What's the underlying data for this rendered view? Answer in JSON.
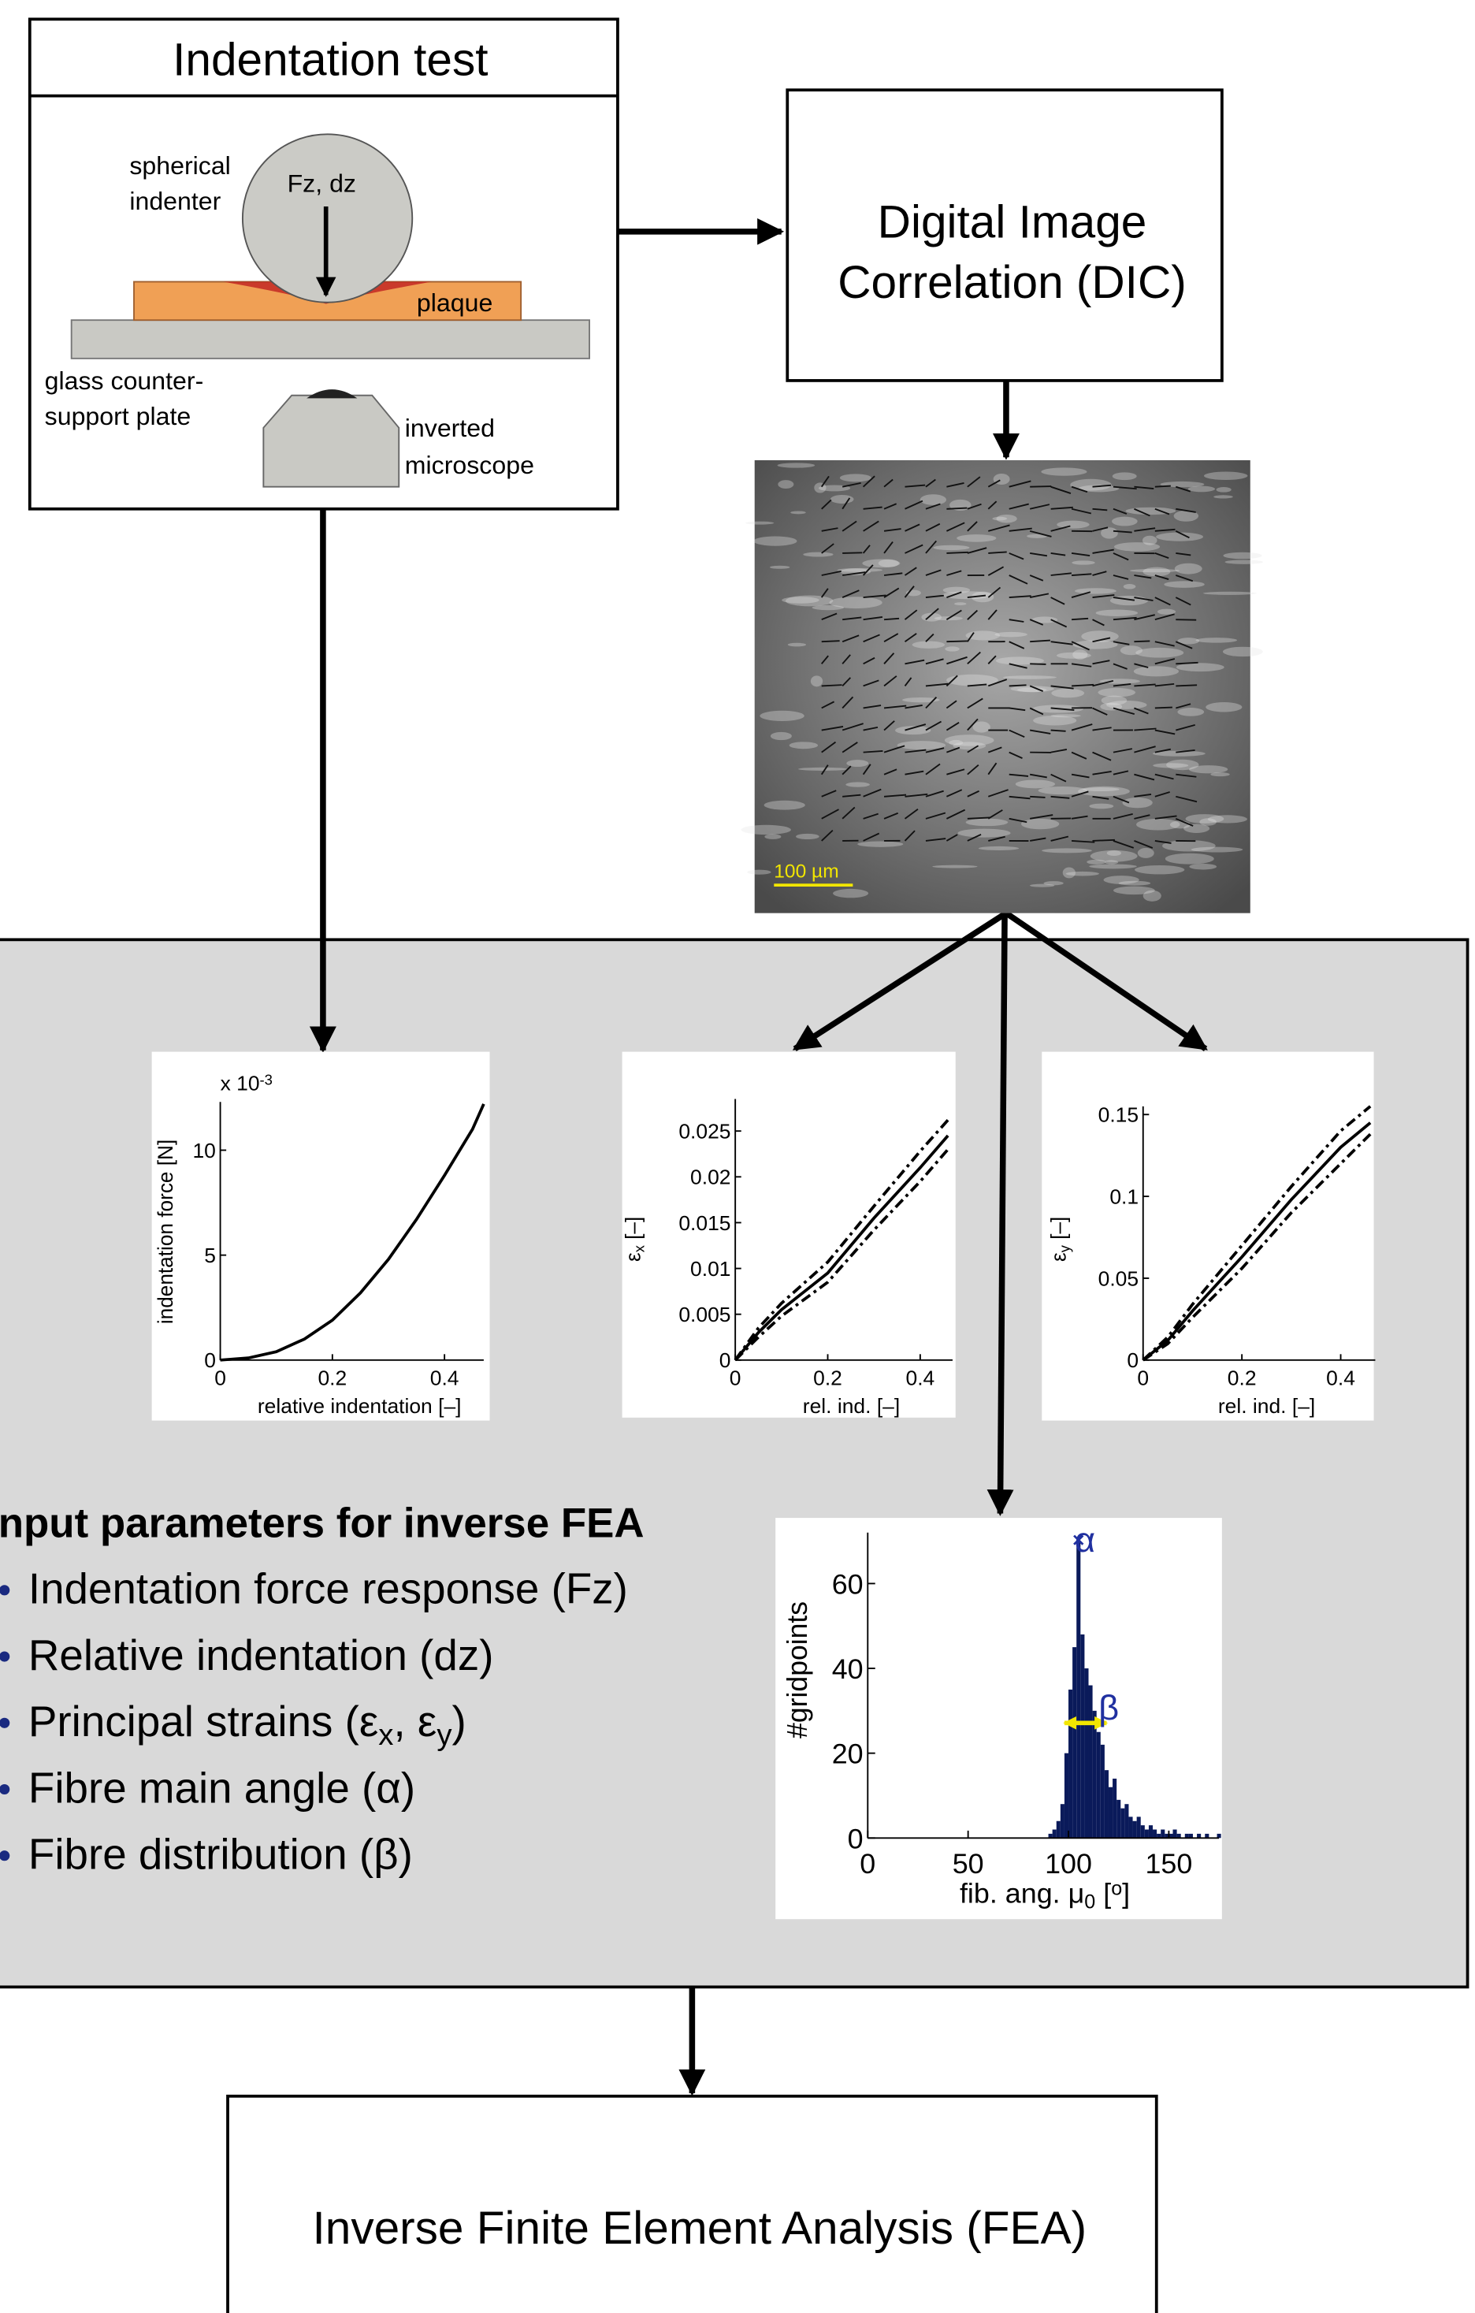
{
  "indentation_test": {
    "title": "Indentation test",
    "indenter_label": [
      "spherical",
      "indenter"
    ],
    "load_label": "Fz, dz",
    "plaque_label": "plaque",
    "plate_label": [
      "glass counter-",
      "support plate"
    ],
    "microscope_label": [
      "inverted",
      "microscope"
    ]
  },
  "dic": {
    "label": [
      "Digital Image",
      "Correlation (DIC)"
    ]
  },
  "micrograph": {
    "scale_bar": "100 µm"
  },
  "plots": [
    {
      "type": "line",
      "multiplier": [
        "x 10",
        "-3"
      ],
      "ylabel": [
        "indentation force [N]"
      ],
      "xlabel": [
        "relative indentation [–]"
      ],
      "xlim": [
        0,
        0.47
      ],
      "ylim": [
        0,
        12.3
      ],
      "xticks": [
        0,
        0.2,
        0.4
      ],
      "yticks": [
        0,
        5,
        10
      ],
      "x": [
        0,
        0.05,
        0.1,
        0.15,
        0.2,
        0.25,
        0.3,
        0.35,
        0.4,
        0.45,
        0.47
      ],
      "series": [
        {
          "color": "#000000",
          "style": "solid",
          "values": [
            0,
            0.1,
            0.4,
            1,
            1.9,
            3.2,
            4.8,
            6.7,
            8.8,
            11,
            12.2
          ]
        }
      ]
    },
    {
      "type": "line",
      "ylabel": [
        "ε",
        "x",
        " [–]"
      ],
      "xlabel": [
        "rel. ind. [–]"
      ],
      "xlim": [
        0,
        0.47
      ],
      "ylim": [
        0,
        0.0285
      ],
      "xticks": [
        0,
        0.2,
        0.4
      ],
      "yticks": [
        0,
        0.005,
        0.01,
        0.015,
        0.02,
        0.025
      ],
      "x": [
        0,
        0.05,
        0.1,
        0.2,
        0.3,
        0.4,
        0.46
      ],
      "series": [
        {
          "color": "#000000",
          "style": "solid",
          "values": [
            0,
            0.003,
            0.0055,
            0.0095,
            0.0155,
            0.021,
            0.0245
          ]
        },
        {
          "color": "#000000",
          "style": "dashdot",
          "values": [
            0,
            0.0035,
            0.0062,
            0.0107,
            0.0168,
            0.0228,
            0.0262
          ]
        },
        {
          "color": "#000000",
          "style": "dashdot",
          "values": [
            0,
            0.0025,
            0.0048,
            0.0085,
            0.0142,
            0.0195,
            0.023
          ]
        }
      ]
    },
    {
      "type": "line",
      "ylabel": [
        "ε",
        "y",
        " [–]"
      ],
      "xlabel": [
        "rel. ind. [–]"
      ],
      "xlim": [
        0,
        0.47
      ],
      "ylim": [
        0,
        0.155
      ],
      "xticks": [
        0,
        0.2,
        0.4
      ],
      "yticks": [
        0,
        0.05,
        0.1,
        0.15
      ],
      "x": [
        0,
        0.05,
        0.1,
        0.2,
        0.3,
        0.4,
        0.46
      ],
      "series": [
        {
          "color": "#000000",
          "style": "solid",
          "values": [
            0,
            0.012,
            0.03,
            0.063,
            0.098,
            0.13,
            0.145
          ]
        },
        {
          "color": "#000000",
          "style": "dashdot",
          "values": [
            0,
            0.014,
            0.034,
            0.07,
            0.106,
            0.14,
            0.155
          ]
        },
        {
          "color": "#000000",
          "style": "dashdot",
          "values": [
            0,
            0.01,
            0.026,
            0.056,
            0.09,
            0.12,
            0.138
          ]
        }
      ]
    }
  ],
  "histogram": {
    "type": "histogram",
    "ylabel": "#gridpoints",
    "xlabel": [
      "fib. ang. μ",
      "0",
      " [",
      "o",
      "]"
    ],
    "xlim": [
      0,
      175
    ],
    "ylim": [
      0,
      72
    ],
    "xticks": [
      0,
      50,
      100,
      150
    ],
    "yticks": [
      0,
      20,
      40,
      60
    ],
    "color": "#0a1a5a",
    "bins": [
      90,
      92,
      94,
      96,
      98,
      100,
      102,
      104,
      106,
      108,
      110,
      112,
      114,
      116,
      118,
      120,
      122,
      124,
      126,
      128,
      130,
      132,
      134,
      136,
      138,
      140,
      142,
      144,
      146,
      148,
      150,
      152,
      154,
      156,
      158,
      160,
      162,
      164,
      166,
      168,
      170,
      172,
      174,
      176
    ],
    "counts": [
      1,
      2,
      4,
      8,
      20,
      35,
      45,
      70,
      48,
      40,
      36,
      30,
      25,
      22,
      16,
      12,
      14,
      9,
      7,
      8,
      5,
      4,
      5,
      3,
      2,
      3,
      2,
      1,
      2,
      1,
      1,
      2,
      1,
      0,
      1,
      1,
      0,
      1,
      0,
      1,
      0,
      0,
      1
    ],
    "alpha_label": "α",
    "beta_label": "β"
  },
  "input_parameters": {
    "title": "Input parameters for inverse FEA",
    "items": [
      [
        "Indentation force response (Fz)"
      ],
      [
        "Relative indentation (dz)"
      ],
      [
        "Principal strains (ε",
        "x",
        ", ε",
        "y",
        ")"
      ],
      [
        "Fibre main angle (α)"
      ],
      [
        "Fibre distribution (β)"
      ]
    ]
  },
  "fea": {
    "label": "Inverse Finite Element Analysis (FEA)"
  }
}
